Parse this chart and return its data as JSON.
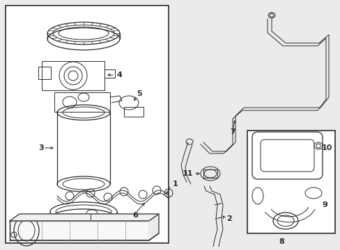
{
  "bg_color": "#f0f0f0",
  "line_color": "#2a2a2a",
  "figsize": [
    4.89,
    3.6
  ],
  "dpi": 100,
  "lw_thin": 0.7,
  "lw_med": 0.9,
  "lw_thick": 1.2,
  "font_size": 7.5
}
